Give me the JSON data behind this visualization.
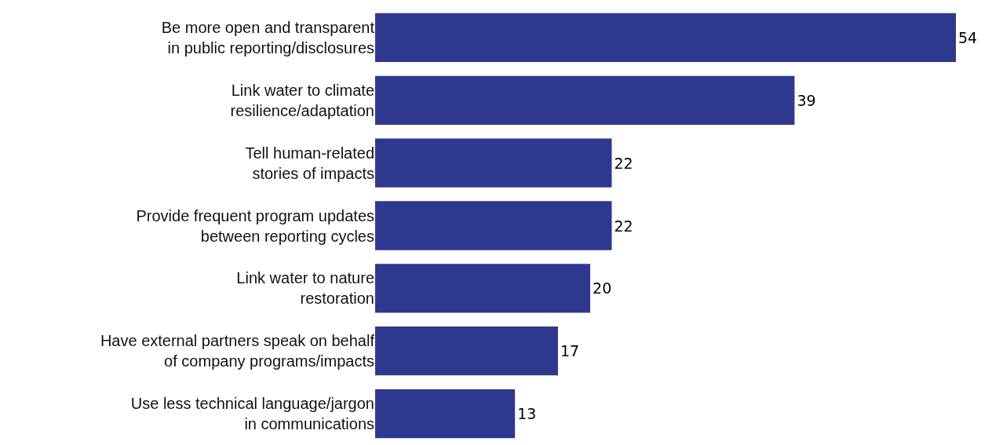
{
  "chart_data": {
    "type": "bar",
    "orientation": "horizontal",
    "categories": [
      "Be more open and transparent\nin public reporting/disclosures",
      "Link water to climate\nresilience/adaptation",
      "Tell human-related\nstories of impacts",
      "Provide frequent program updates\nbetween reporting cycles",
      "Link water to nature\nrestoration",
      "Have external partners speak on behalf\nof company programs/impacts",
      "Use less technical language/jargon\nin communications"
    ],
    "values": [
      54,
      39,
      22,
      22,
      20,
      17,
      13
    ],
    "color": "#2e388e",
    "data_labels": true
  }
}
